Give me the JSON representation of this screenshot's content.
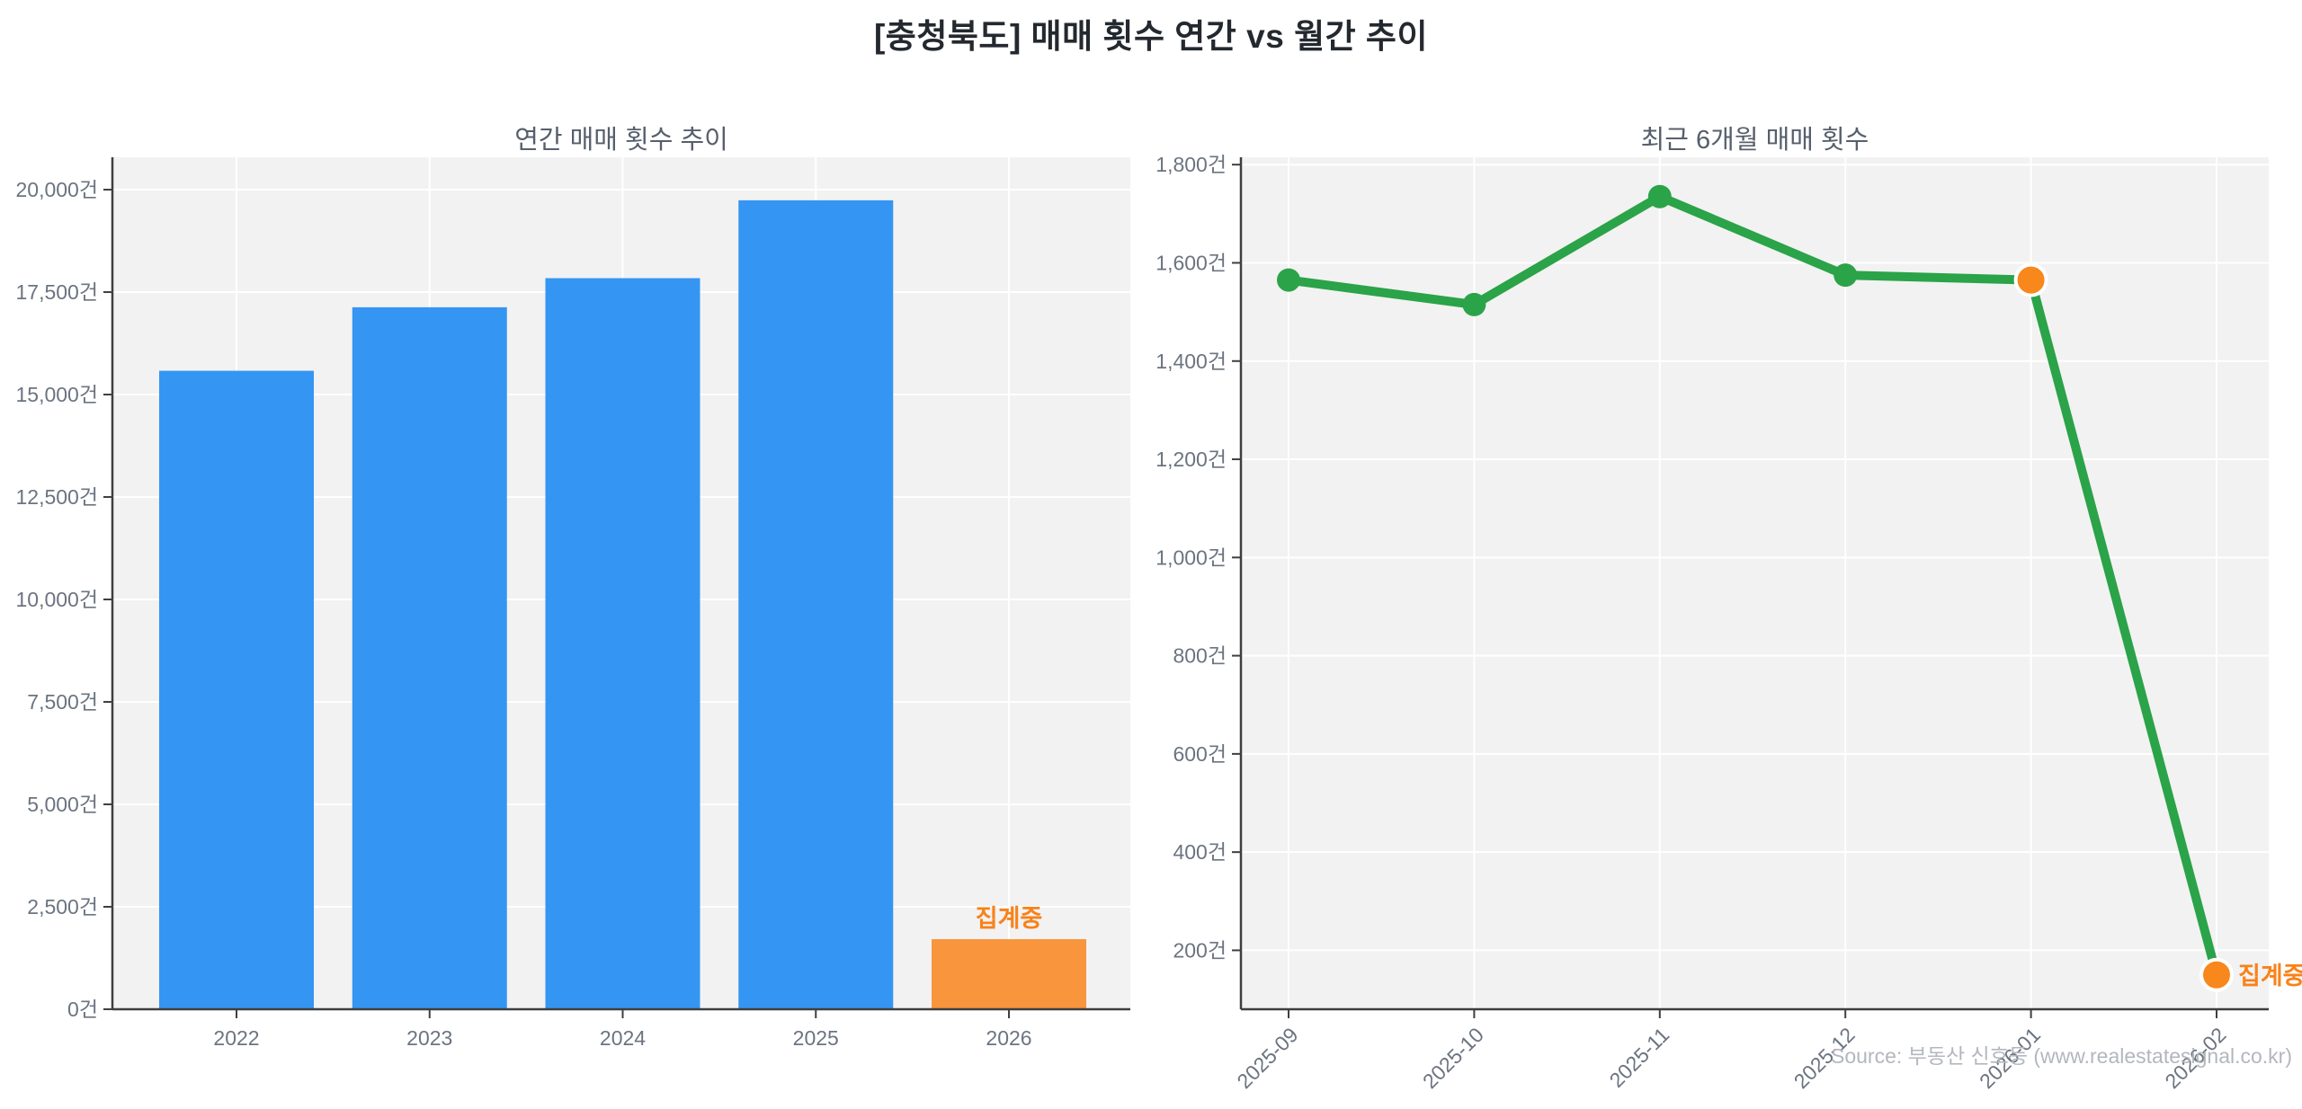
{
  "header": {
    "title": "[충청북도] 매매 횟수 연간 vs 월간 추이"
  },
  "footer": {
    "source": "Source: 부동산 신호등 (www.realestatesignal.co.kr)"
  },
  "style": {
    "plot_bg": "#f2f2f2",
    "grid_color": "#ffffff",
    "axis_color": "#3f3f3f",
    "tick_label_color": "#6b7480",
    "title_color": "#565f6c",
    "annotation_color": "#f8821a",
    "bar_blue": "#3595f2",
    "bar_orange": "#f8953d",
    "line_green": "#2ba348",
    "point_orange": "#f8871c"
  },
  "chart_data": [
    {
      "type": "bar",
      "title": "연간 매매 횟수 추이",
      "unit": "건",
      "categories": [
        "2022",
        "2023",
        "2024",
        "2025",
        "2026"
      ],
      "values": [
        15580,
        17130,
        17840,
        19740,
        1710
      ],
      "bar_colors": [
        "#3595f2",
        "#3595f2",
        "#3595f2",
        "#3595f2",
        "#f8953d"
      ],
      "yticks": [
        0,
        2500,
        5000,
        7500,
        10000,
        12500,
        15000,
        17500,
        20000
      ],
      "ylim": [
        0,
        20790
      ],
      "grid": true,
      "legend": null,
      "annotation": {
        "text": "집계중",
        "index": 4,
        "color": "#f8821a"
      }
    },
    {
      "type": "line",
      "title": "최근 6개월 매매 횟수",
      "unit": "건",
      "x": [
        "2025-09",
        "2025-10",
        "2025-11",
        "2025-12",
        "2026-01",
        "2026-02"
      ],
      "values": [
        1565,
        1515,
        1735,
        1575,
        1565,
        150
      ],
      "line_color": "#2ba348",
      "marker_color": "#2ba348",
      "highlight_color": "#f8871c",
      "highlight_indices": [
        4,
        5
      ],
      "yticks": [
        200,
        400,
        600,
        800,
        1000,
        1200,
        1400,
        1600,
        1800
      ],
      "ylim": [
        80,
        1815
      ],
      "grid": true,
      "legend": null,
      "annotation": {
        "text": "집계중",
        "index": 5,
        "color": "#f8821a"
      }
    }
  ]
}
